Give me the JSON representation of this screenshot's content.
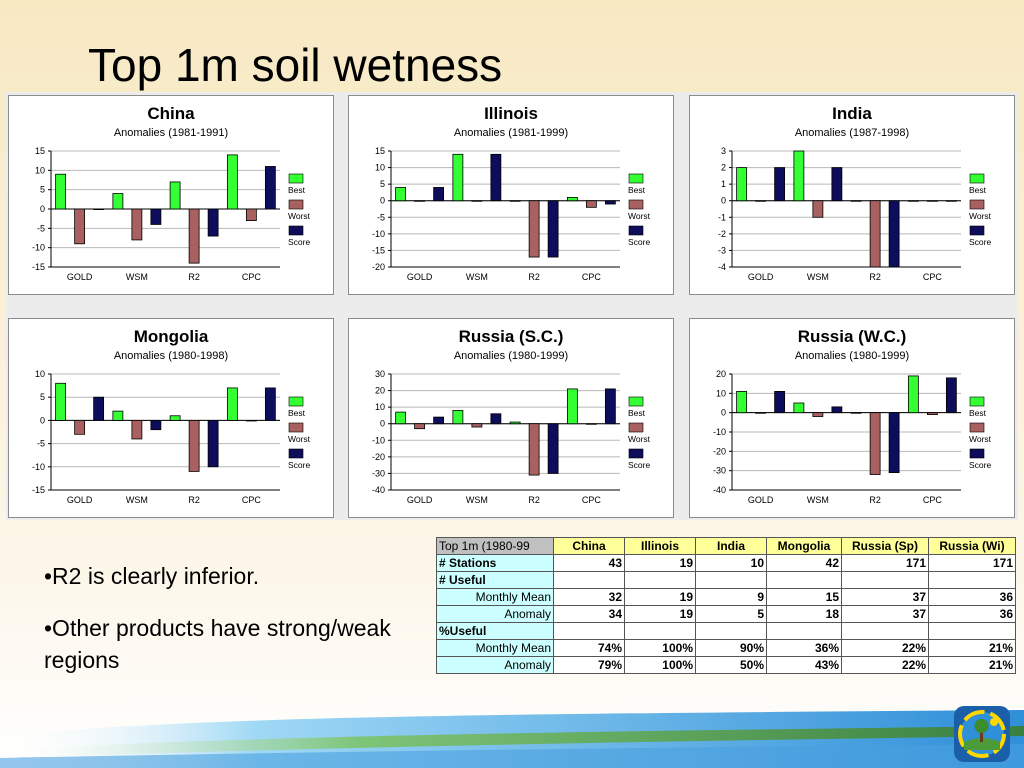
{
  "slide": {
    "title": "Top 1m soil wetness",
    "bullets": [
      "•R2 is clearly inferior.",
      "•Other products have strong/weak regions"
    ]
  },
  "legend": {
    "best": "Best",
    "worst": "Worst",
    "score": "Score"
  },
  "colors": {
    "best": "#33ff33",
    "worst": "#a86060",
    "score": "#0d0d5c"
  },
  "chart_data": [
    {
      "type": "bar",
      "title": "China",
      "subtitle": "Anomalies (1981-1991)",
      "categories": [
        "GOLD",
        "WSM",
        "R2",
        "CPC"
      ],
      "ylim": [
        -15,
        15
      ],
      "yticks": [
        -15,
        -10,
        -5,
        0,
        5,
        10,
        15
      ],
      "series": [
        {
          "name": "Best",
          "values": [
            9,
            4,
            7,
            14
          ]
        },
        {
          "name": "Worst",
          "values": [
            -9,
            -8,
            -14,
            -3
          ]
        },
        {
          "name": "Score",
          "values": [
            0,
            -4,
            -7,
            11
          ]
        }
      ]
    },
    {
      "type": "bar",
      "title": "Illinois",
      "subtitle": "Anomalies (1981-1999)",
      "categories": [
        "GOLD",
        "WSM",
        "R2",
        "CPC"
      ],
      "ylim": [
        -20,
        15
      ],
      "yticks": [
        -20,
        -15,
        -10,
        -5,
        0,
        5,
        10,
        15
      ],
      "series": [
        {
          "name": "Best",
          "values": [
            4,
            14,
            0,
            1
          ]
        },
        {
          "name": "Worst",
          "values": [
            0,
            0,
            -17,
            -2
          ]
        },
        {
          "name": "Score",
          "values": [
            4,
            14,
            -17,
            -1
          ]
        }
      ]
    },
    {
      "type": "bar",
      "title": "India",
      "subtitle": "Anomalies (1987-1998)",
      "categories": [
        "GOLD",
        "WSM",
        "R2",
        "CPC"
      ],
      "ylim": [
        -4,
        3
      ],
      "yticks": [
        -4,
        -3,
        -2,
        -1,
        0,
        1,
        2,
        3
      ],
      "series": [
        {
          "name": "Best",
          "values": [
            2,
            3,
            0,
            0
          ]
        },
        {
          "name": "Worst",
          "values": [
            0,
            -1,
            -4,
            0
          ]
        },
        {
          "name": "Score",
          "values": [
            2,
            2,
            -4,
            0
          ]
        }
      ]
    },
    {
      "type": "bar",
      "title": "Mongolia",
      "subtitle": "Anomalies (1980-1998)",
      "categories": [
        "GOLD",
        "WSM",
        "R2",
        "CPC"
      ],
      "ylim": [
        -15,
        10
      ],
      "yticks": [
        -15,
        -10,
        -5,
        0,
        5,
        10
      ],
      "series": [
        {
          "name": "Best",
          "values": [
            8,
            2,
            1,
            7
          ]
        },
        {
          "name": "Worst",
          "values": [
            -3,
            -4,
            -11,
            0
          ]
        },
        {
          "name": "Score",
          "values": [
            5,
            -2,
            -10,
            7
          ]
        }
      ]
    },
    {
      "type": "bar",
      "title": "Russia (S.C.)",
      "subtitle": "Anomalies (1980-1999)",
      "categories": [
        "GOLD",
        "WSM",
        "R2",
        "CPC"
      ],
      "ylim": [
        -40,
        30
      ],
      "yticks": [
        -40,
        -30,
        -20,
        -10,
        0,
        10,
        20,
        30
      ],
      "series": [
        {
          "name": "Best",
          "values": [
            7,
            8,
            1,
            21
          ]
        },
        {
          "name": "Worst",
          "values": [
            -3,
            -2,
            -31,
            0
          ]
        },
        {
          "name": "Score",
          "values": [
            4,
            6,
            -30,
            21
          ]
        }
      ]
    },
    {
      "type": "bar",
      "title": "Russia (W.C.)",
      "subtitle": "Anomalies (1980-1999)",
      "categories": [
        "GOLD",
        "WSM",
        "R2",
        "CPC"
      ],
      "ylim": [
        -40,
        20
      ],
      "yticks": [
        -40,
        -30,
        -20,
        -10,
        0,
        10,
        20
      ],
      "series": [
        {
          "name": "Best",
          "values": [
            11,
            5,
            0,
            19
          ]
        },
        {
          "name": "Worst",
          "values": [
            0,
            -2,
            -32,
            -1
          ]
        },
        {
          "name": "Score",
          "values": [
            11,
            3,
            -31,
            18
          ]
        }
      ]
    }
  ],
  "table": {
    "header": [
      "Top 1m (1980-99",
      "China",
      "Illinois",
      "India",
      "Mongolia",
      "Russia (Sp)",
      "Russia (Wi)"
    ],
    "rows": [
      {
        "label": "# Stations",
        "style": "bold",
        "values": [
          "43",
          "19",
          "10",
          "42",
          "171",
          "171"
        ]
      },
      {
        "label": "# Useful",
        "style": "bold",
        "values": [
          "",
          "",
          "",
          "",
          "",
          ""
        ]
      },
      {
        "label": "Monthly Mean",
        "style": "right",
        "values": [
          "32",
          "19",
          "9",
          "15",
          "37",
          "36"
        ]
      },
      {
        "label": "Anomaly",
        "style": "right",
        "values": [
          "34",
          "19",
          "5",
          "18",
          "37",
          "36"
        ]
      },
      {
        "label": "%Useful",
        "style": "bold",
        "values": [
          "",
          "",
          "",
          "",
          "",
          ""
        ]
      },
      {
        "label": "Monthly Mean",
        "style": "right",
        "values": [
          "74%",
          "100%",
          "90%",
          "36%",
          "22%",
          "21%"
        ]
      },
      {
        "label": "Anomaly",
        "style": "right",
        "values": [
          "79%",
          "100%",
          "50%",
          "43%",
          "22%",
          "21%"
        ]
      }
    ]
  }
}
